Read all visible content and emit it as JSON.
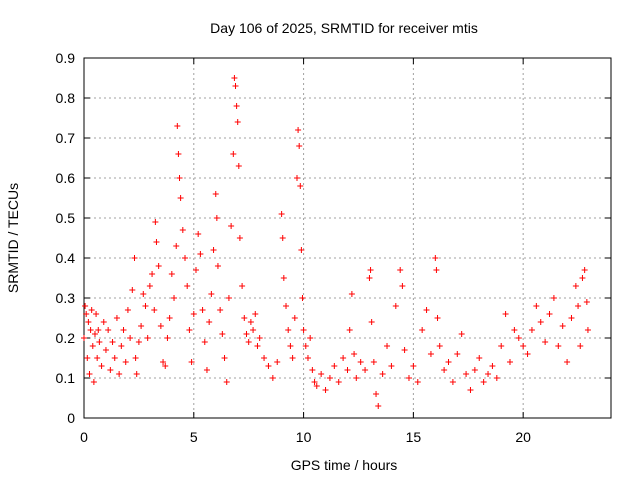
{
  "chart_data": {
    "type": "scatter",
    "title": "Day 106 of 2025, SRMTID for receiver mtis",
    "xlabel": "GPS time / hours",
    "ylabel": "SRMTID / TECUs",
    "xlim": [
      0,
      24
    ],
    "ylim": [
      0,
      0.9
    ],
    "xticks": [
      0,
      5,
      10,
      15,
      20
    ],
    "yticks": [
      0,
      0.1,
      0.2,
      0.3,
      0.4,
      0.5,
      0.6,
      0.7,
      0.8,
      0.9
    ],
    "grid": true,
    "marker": "+",
    "color": "#ff0000",
    "series": [
      {
        "name": "SRMTID",
        "points": [
          [
            0.0,
            0.2
          ],
          [
            0.05,
            0.28
          ],
          [
            0.1,
            0.26
          ],
          [
            0.15,
            0.15
          ],
          [
            0.2,
            0.24
          ],
          [
            0.25,
            0.11
          ],
          [
            0.3,
            0.22
          ],
          [
            0.35,
            0.27
          ],
          [
            0.4,
            0.18
          ],
          [
            0.45,
            0.09
          ],
          [
            0.5,
            0.21
          ],
          [
            0.55,
            0.26
          ],
          [
            0.6,
            0.15
          ],
          [
            0.65,
            0.22
          ],
          [
            0.7,
            0.19
          ],
          [
            0.8,
            0.13
          ],
          [
            0.9,
            0.24
          ],
          [
            1.0,
            0.17
          ],
          [
            1.1,
            0.22
          ],
          [
            1.2,
            0.12
          ],
          [
            1.3,
            0.19
          ],
          [
            1.4,
            0.15
          ],
          [
            1.5,
            0.25
          ],
          [
            1.6,
            0.11
          ],
          [
            1.7,
            0.18
          ],
          [
            1.8,
            0.22
          ],
          [
            1.9,
            0.14
          ],
          [
            2.0,
            0.27
          ],
          [
            2.1,
            0.2
          ],
          [
            2.2,
            0.32
          ],
          [
            2.3,
            0.4
          ],
          [
            2.35,
            0.15
          ],
          [
            2.4,
            0.11
          ],
          [
            2.5,
            0.19
          ],
          [
            2.6,
            0.23
          ],
          [
            2.7,
            0.31
          ],
          [
            2.8,
            0.28
          ],
          [
            2.9,
            0.2
          ],
          [
            3.0,
            0.33
          ],
          [
            3.1,
            0.36
          ],
          [
            3.2,
            0.27
          ],
          [
            3.25,
            0.49
          ],
          [
            3.3,
            0.44
          ],
          [
            3.4,
            0.38
          ],
          [
            3.5,
            0.23
          ],
          [
            3.6,
            0.14
          ],
          [
            3.7,
            0.13
          ],
          [
            3.8,
            0.2
          ],
          [
            3.9,
            0.25
          ],
          [
            4.0,
            0.36
          ],
          [
            4.1,
            0.3
          ],
          [
            4.2,
            0.43
          ],
          [
            4.25,
            0.73
          ],
          [
            4.3,
            0.66
          ],
          [
            4.35,
            0.6
          ],
          [
            4.4,
            0.55
          ],
          [
            4.5,
            0.47
          ],
          [
            4.6,
            0.4
          ],
          [
            4.7,
            0.33
          ],
          [
            4.8,
            0.22
          ],
          [
            4.9,
            0.14
          ],
          [
            5.0,
            0.26
          ],
          [
            5.1,
            0.37
          ],
          [
            5.2,
            0.46
          ],
          [
            5.3,
            0.41
          ],
          [
            5.4,
            0.27
          ],
          [
            5.5,
            0.19
          ],
          [
            5.6,
            0.12
          ],
          [
            5.7,
            0.24
          ],
          [
            5.8,
            0.31
          ],
          [
            5.9,
            0.42
          ],
          [
            6.0,
            0.56
          ],
          [
            6.05,
            0.5
          ],
          [
            6.1,
            0.38
          ],
          [
            6.2,
            0.27
          ],
          [
            6.3,
            0.21
          ],
          [
            6.4,
            0.15
          ],
          [
            6.5,
            0.09
          ],
          [
            6.6,
            0.3
          ],
          [
            6.7,
            0.48
          ],
          [
            6.8,
            0.66
          ],
          [
            6.85,
            0.85
          ],
          [
            6.9,
            0.83
          ],
          [
            6.95,
            0.78
          ],
          [
            7.0,
            0.74
          ],
          [
            7.05,
            0.63
          ],
          [
            7.1,
            0.45
          ],
          [
            7.2,
            0.33
          ],
          [
            7.3,
            0.25
          ],
          [
            7.4,
            0.21
          ],
          [
            7.5,
            0.19
          ],
          [
            7.6,
            0.24
          ],
          [
            7.7,
            0.22
          ],
          [
            7.8,
            0.26
          ],
          [
            7.9,
            0.18
          ],
          [
            8.0,
            0.2
          ],
          [
            8.2,
            0.15
          ],
          [
            8.4,
            0.13
          ],
          [
            8.6,
            0.1
          ],
          [
            8.8,
            0.14
          ],
          [
            9.0,
            0.51
          ],
          [
            9.05,
            0.45
          ],
          [
            9.1,
            0.35
          ],
          [
            9.2,
            0.28
          ],
          [
            9.3,
            0.22
          ],
          [
            9.4,
            0.18
          ],
          [
            9.5,
            0.15
          ],
          [
            9.6,
            0.25
          ],
          [
            9.7,
            0.6
          ],
          [
            9.75,
            0.72
          ],
          [
            9.8,
            0.68
          ],
          [
            9.85,
            0.58
          ],
          [
            9.9,
            0.42
          ],
          [
            9.95,
            0.3
          ],
          [
            10.0,
            0.22
          ],
          [
            10.1,
            0.18
          ],
          [
            10.2,
            0.15
          ],
          [
            10.3,
            0.2
          ],
          [
            10.4,
            0.12
          ],
          [
            10.5,
            0.09
          ],
          [
            10.6,
            0.08
          ],
          [
            10.8,
            0.11
          ],
          [
            11.0,
            0.07
          ],
          [
            11.2,
            0.1
          ],
          [
            11.4,
            0.13
          ],
          [
            11.6,
            0.09
          ],
          [
            11.8,
            0.15
          ],
          [
            12.0,
            0.12
          ],
          [
            12.1,
            0.22
          ],
          [
            12.2,
            0.31
          ],
          [
            12.3,
            0.16
          ],
          [
            12.4,
            0.1
          ],
          [
            12.6,
            0.14
          ],
          [
            12.8,
            0.12
          ],
          [
            13.0,
            0.35
          ],
          [
            13.05,
            0.37
          ],
          [
            13.1,
            0.24
          ],
          [
            13.2,
            0.14
          ],
          [
            13.3,
            0.06
          ],
          [
            13.4,
            0.03
          ],
          [
            13.6,
            0.11
          ],
          [
            13.8,
            0.18
          ],
          [
            14.0,
            0.13
          ],
          [
            14.2,
            0.28
          ],
          [
            14.4,
            0.37
          ],
          [
            14.5,
            0.33
          ],
          [
            14.6,
            0.17
          ],
          [
            14.8,
            0.1
          ],
          [
            15.0,
            0.13
          ],
          [
            15.2,
            0.09
          ],
          [
            15.4,
            0.22
          ],
          [
            15.6,
            0.27
          ],
          [
            15.8,
            0.16
          ],
          [
            16.0,
            0.4
          ],
          [
            16.05,
            0.37
          ],
          [
            16.1,
            0.25
          ],
          [
            16.2,
            0.18
          ],
          [
            16.4,
            0.12
          ],
          [
            16.6,
            0.14
          ],
          [
            16.8,
            0.09
          ],
          [
            17.0,
            0.16
          ],
          [
            17.2,
            0.21
          ],
          [
            17.4,
            0.11
          ],
          [
            17.6,
            0.07
          ],
          [
            17.8,
            0.12
          ],
          [
            18.0,
            0.15
          ],
          [
            18.2,
            0.09
          ],
          [
            18.4,
            0.11
          ],
          [
            18.6,
            0.13
          ],
          [
            18.8,
            0.1
          ],
          [
            19.0,
            0.18
          ],
          [
            19.2,
            0.26
          ],
          [
            19.4,
            0.14
          ],
          [
            19.6,
            0.22
          ],
          [
            19.8,
            0.2
          ],
          [
            20.0,
            0.18
          ],
          [
            20.2,
            0.16
          ],
          [
            20.4,
            0.22
          ],
          [
            20.6,
            0.28
          ],
          [
            20.8,
            0.24
          ],
          [
            21.0,
            0.19
          ],
          [
            21.2,
            0.26
          ],
          [
            21.4,
            0.3
          ],
          [
            21.6,
            0.18
          ],
          [
            21.8,
            0.23
          ],
          [
            22.0,
            0.14
          ],
          [
            22.2,
            0.25
          ],
          [
            22.4,
            0.33
          ],
          [
            22.5,
            0.28
          ],
          [
            22.6,
            0.18
          ],
          [
            22.7,
            0.35
          ],
          [
            22.8,
            0.37
          ],
          [
            22.9,
            0.29
          ],
          [
            22.95,
            0.22
          ]
        ]
      }
    ]
  }
}
